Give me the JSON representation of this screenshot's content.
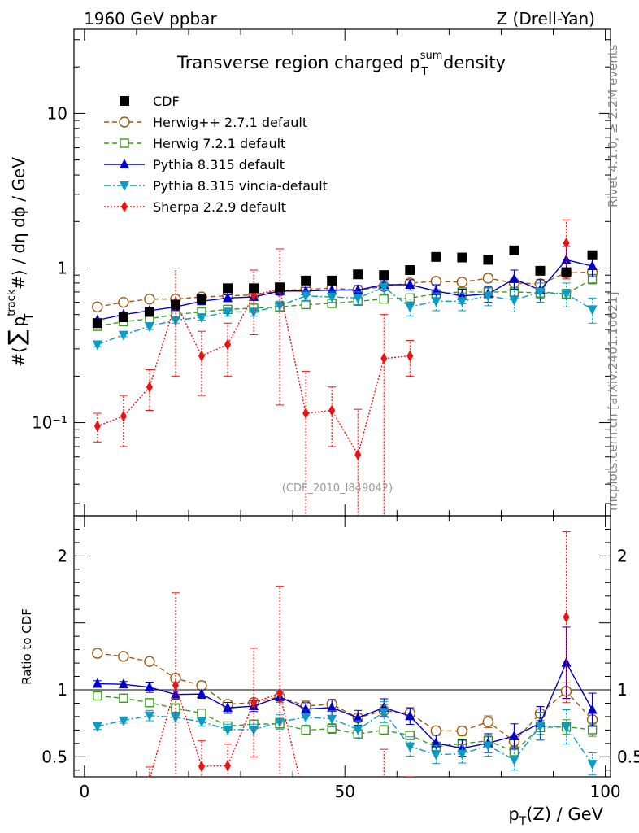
{
  "header": {
    "left": "1960 GeV ppbar",
    "right": "Z (Drell-Yan)"
  },
  "side_labels": {
    "rivet": "Rivet 4.1.0, ≥ 2.2M events",
    "mcplots": "mcplots.cern.ch [arXiv:2401.10621]"
  },
  "chart_data": {
    "type": "scatter",
    "title_prefix": "Transverse region charged p",
    "title_sup": "sum",
    "title_sub": "T",
    "title_suffix": " density",
    "ylabel": "#⟨ ∑ p_T^track #⟩ / dη dϕ / GeV",
    "ylabel_parts": {
      "hash1": "#⟨",
      "sum": "∑",
      "p": "p",
      "sup": "track",
      "sub": "T",
      "rest": "#⟩ / dη dϕ / GeV"
    },
    "xlabel_parts": {
      "p": "p",
      "sub": "T",
      "rest": "(Z) / GeV"
    },
    "ratio_ylabel": "Ratio to CDF",
    "watermark": "(CDF_2010_I849042)",
    "x_range": [
      -2,
      101
    ],
    "y_range_log": [
      0.025,
      35
    ],
    "ratio_range": [
      0.35,
      2.3
    ],
    "x_ticks": [
      0,
      50,
      100
    ],
    "y_ticks_main": [
      {
        "v": 0.1,
        "label": "10⁻¹"
      },
      {
        "v": 1,
        "label": "1"
      },
      {
        "v": 10,
        "label": "10"
      }
    ],
    "y_ticks_ratio": [
      {
        "v": 0.5,
        "label": "0.5"
      },
      {
        "v": 1,
        "label": "1"
      },
      {
        "v": 2,
        "label": "2"
      }
    ],
    "x": [
      2.5,
      7.5,
      12.5,
      17.5,
      22.5,
      27.5,
      32.5,
      37.5,
      42.5,
      47.5,
      52.5,
      57.5,
      62.5,
      67.5,
      72.5,
      77.5,
      82.5,
      87.5,
      92.5,
      97.5
    ],
    "data": {
      "name": "CDF",
      "color": "#000000",
      "marker": "square-filled",
      "values": [
        0.44,
        0.48,
        0.52,
        0.58,
        0.63,
        0.74,
        0.74,
        0.75,
        0.83,
        0.83,
        0.91,
        0.9,
        0.97,
        1.18,
        1.17,
        1.13,
        1.3,
        0.96,
        0.94,
        1.21
      ],
      "errors": [
        0.02,
        0.02,
        0.02,
        0.02,
        0.03,
        0.03,
        0.03,
        0.04,
        0.04,
        0.04,
        0.05,
        0.05,
        0.05,
        0.06,
        0.06,
        0.06,
        0.07,
        0.06,
        0.06,
        0.07
      ]
    },
    "series": [
      {
        "name": "Herwig++ 2.7.1 default",
        "color": "#9a5a16",
        "dash": "6,4",
        "marker": "circle-open",
        "values": [
          0.56,
          0.6,
          0.63,
          0.63,
          0.65,
          0.66,
          0.67,
          0.71,
          0.73,
          0.74,
          0.72,
          0.76,
          0.8,
          0.82,
          0.81,
          0.86,
          0.8,
          0.79,
          0.93,
          0.94
        ],
        "errors": [
          0.01,
          0.01,
          0.01,
          0.02,
          0.02,
          0.02,
          0.02,
          0.03,
          0.03,
          0.03,
          0.03,
          0.04,
          0.04,
          0.04,
          0.04,
          0.05,
          0.05,
          0.05,
          0.06,
          0.06
        ]
      },
      {
        "name": "Herwig 7.2.1 default",
        "color": "#3b9a1c",
        "dash": "6,4",
        "marker": "square-open",
        "values": [
          0.42,
          0.45,
          0.47,
          0.5,
          0.52,
          0.54,
          0.55,
          0.56,
          0.58,
          0.59,
          0.61,
          0.63,
          0.64,
          0.68,
          0.7,
          0.7,
          0.7,
          0.69,
          0.68,
          0.85
        ],
        "errors": [
          0.01,
          0.01,
          0.01,
          0.02,
          0.02,
          0.02,
          0.02,
          0.02,
          0.03,
          0.03,
          0.03,
          0.03,
          0.03,
          0.04,
          0.04,
          0.04,
          0.05,
          0.05,
          0.05,
          0.06
        ]
      },
      {
        "name": "Pythia 8.315 default",
        "color": "#0000cc",
        "dash": "",
        "marker": "triangle-up",
        "values": [
          0.46,
          0.5,
          0.53,
          0.56,
          0.61,
          0.64,
          0.65,
          0.71,
          0.71,
          0.72,
          0.72,
          0.78,
          0.78,
          0.71,
          0.66,
          0.68,
          0.85,
          0.72,
          1.13,
          1.03
        ],
        "errors": [
          0.01,
          0.01,
          0.02,
          0.02,
          0.02,
          0.03,
          0.03,
          0.04,
          0.04,
          0.05,
          0.05,
          0.06,
          0.06,
          0.07,
          0.07,
          0.08,
          0.12,
          0.12,
          0.25,
          0.15
        ]
      },
      {
        "name": "Pythia 8.315 vincia-default",
        "color": "#0a9cc4",
        "dash": "8,3,2,3",
        "marker": "triangle-down",
        "values": [
          0.32,
          0.37,
          0.42,
          0.46,
          0.48,
          0.52,
          0.52,
          0.57,
          0.66,
          0.65,
          0.64,
          0.75,
          0.56,
          0.61,
          0.61,
          0.66,
          0.62,
          0.7,
          0.68,
          0.54
        ],
        "errors": [
          0.01,
          0.01,
          0.02,
          0.02,
          0.02,
          0.03,
          0.03,
          0.04,
          0.05,
          0.05,
          0.06,
          0.07,
          0.07,
          0.08,
          0.08,
          0.09,
          0.1,
          0.1,
          0.12,
          0.1
        ]
      },
      {
        "name": "Sherpa 2.2.9 default",
        "color": "#ee1111",
        "dash": "2,2",
        "marker": "diamond-filled",
        "values": [
          0.095,
          0.11,
          0.17,
          0.6,
          0.27,
          0.32,
          0.67,
          0.73,
          0.115,
          0.12,
          0.062,
          0.26,
          0.27,
          null,
          null,
          null,
          null,
          null,
          1.45,
          null
        ],
        "errors": [
          0.02,
          0.04,
          0.05,
          0.4,
          0.12,
          0.12,
          0.3,
          0.6,
          0.1,
          0.05,
          0.06,
          0.24,
          0.07,
          null,
          null,
          null,
          null,
          null,
          0.6,
          null
        ]
      }
    ]
  }
}
